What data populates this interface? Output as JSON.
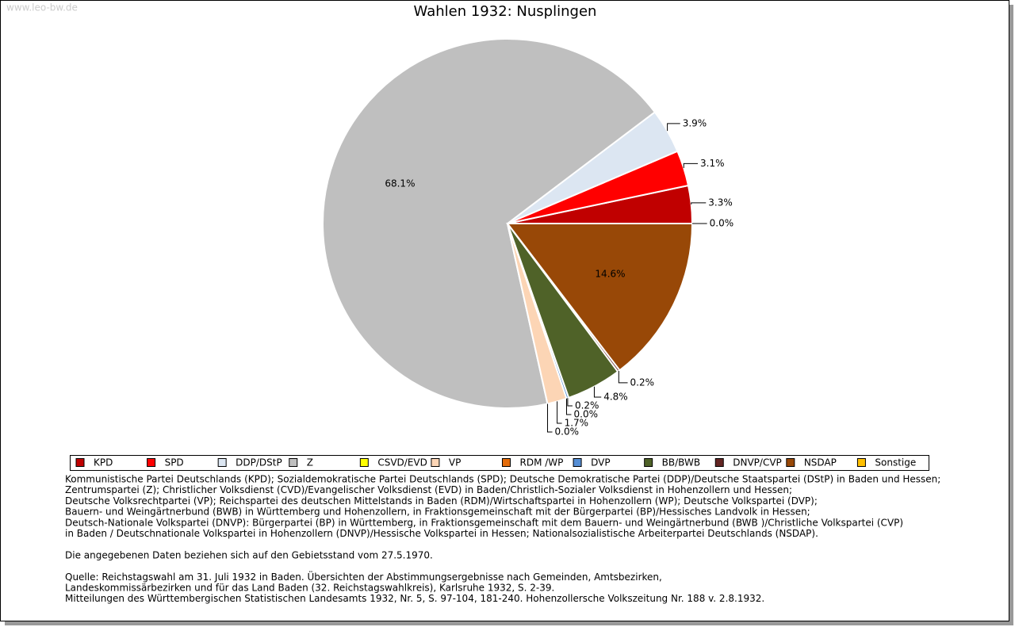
{
  "watermark": "www.leo-bw.de",
  "chart_data": {
    "type": "pie",
    "title": "Wahlen 1932: Nusplingen",
    "categories": [
      "KPD",
      "SPD",
      "DDP/DStP",
      "Z",
      "CSVD/EVD",
      "VP",
      "RDM /WP",
      "DVP",
      "BB/BWB",
      "DNVP/CVP",
      "NSDAP",
      "Sonstige"
    ],
    "values": [
      3.3,
      3.1,
      3.9,
      68.1,
      0.0,
      1.7,
      0.0,
      0.2,
      4.8,
      0.2,
      14.6,
      0.0
    ],
    "value_labels": [
      "3.3%",
      "3.1%",
      "3.9%",
      "68.1%",
      "0.0%",
      "1.7%",
      "0.0%",
      "0.2%",
      "4.8%",
      "0.2%",
      "14.6%",
      "0.0%"
    ],
    "colors": [
      "#c00000",
      "#ff0000",
      "#dce6f2",
      "#bfbfbf",
      "#ffff00",
      "#fcd5b5",
      "#e46c0a",
      "#558ed5",
      "#4f6228",
      "#632523",
      "#984807",
      "#ffc000"
    ],
    "legend": "bottom"
  },
  "notes": [
    [
      "Kommunistische Partei Deutschlands (KPD); Sozialdemokratische Partei Deutschlands (SPD); Deutsche Demokratische Partei (DDP)/Deutsche Staatspartei (DStP) in Baden und Hessen;",
      "Zentrumspartei (Z); Christlicher Volksdienst (CVD)/Evangelischer Volksdienst (EVD) in Baden/Christlich-Sozialer Volksdienst in Hohenzollern und Hessen;",
      "Deutsche Volksrechtpartei (VP); Reichspartei des deutschen Mittelstands in Baden (RDM)/Wirtschaftspartei in Hohenzollern (WP); Deutsche Volkspartei (DVP);",
      "Bauern- und Weingärtnerbund (BWB) in Württemberg und Hohenzollern, in Fraktionsgemeinschaft mit der Bürgerpartei (BP)/Hessisches Landvolk in Hessen;",
      "Deutsch-Nationale Volkspartei (DNVP): Bürgerpartei (BP) in Württemberg, in Fraktionsgemeinschaft mit dem Bauern- und Weingärtnerbund (BWB )/Christliche Volkspartei (CVP)",
      "in Baden / Deutschnationale Volkspartei in Hohenzollern (DNVP)/Hessische Volkspartei in Hessen; Nationalsozialistische Arbeiterpartei Deutschlands (NSDAP)."
    ],
    [
      "Die angegebenen Daten beziehen sich auf den Gebietsstand vom 27.5.1970."
    ],
    [
      "Quelle: Reichstagswahl am 31. Juli 1932 in Baden. Übersichten der Abstimmungsergebnisse nach Gemeinden, Amtsbezirken,",
      "Landeskommissärbezirken und für das Land Baden (32. Reichstagswahlkreis), Karlsruhe 1932, S. 2-39.",
      "Mitteilungen des Württembergischen Statistischen Landesamts 1932, Nr. 5, S. 97-104, 181-240. Hohenzollersche Volkszeitung Nr. 188 v. 2.8.1932."
    ]
  ]
}
